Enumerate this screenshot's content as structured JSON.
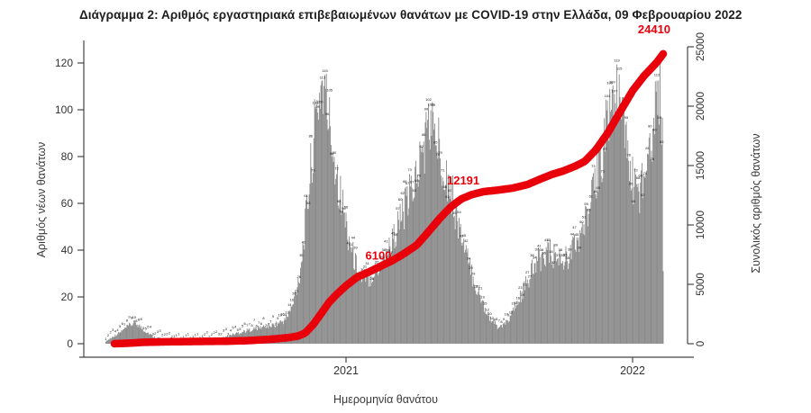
{
  "chart_data": {
    "type": "bar+line",
    "title": "Διάγραμμα 2: Αριθμός εργαστηριακά επιβεβαιωμένων θανάτων με COVID-19 στην Ελλάδα, 09 Φεβρουαρίου 2022",
    "xlabel": "Ημερομηνία θανάτου",
    "ylabel_left": "Αριθμός νέων θανάτων",
    "ylabel_right": "Συνολικός αριθμός θανάτων",
    "x_ticks": [
      "2021",
      "2022"
    ],
    "y_ticks_left": [
      0,
      20,
      40,
      60,
      80,
      100,
      120
    ],
    "y_ticks_right": [
      0,
      5000,
      10000,
      15000,
      20000,
      25000
    ],
    "ylim_left": [
      0,
      128
    ],
    "ylim_right": [
      0,
      25000
    ],
    "grid": false,
    "legend": "none",
    "colors": {
      "bar": "#8a8a8a",
      "line": "#e8000b",
      "bar_label": "#111111",
      "axis": "#454545",
      "tick_text": "#333333"
    },
    "annotations": [
      {
        "label": "6100",
        "date": "2021-02-01",
        "value": 6100
      },
      {
        "label": "12191",
        "date": "2021-05-28",
        "value": 12191
      },
      {
        "label": "24410",
        "date": "2022-02-09",
        "value": 24410
      }
    ],
    "daily_deaths": [
      [
        "2020-03-01",
        1
      ],
      [
        "2020-03-10",
        3
      ],
      [
        "2020-03-20",
        5
      ],
      [
        "2020-04-01",
        8
      ],
      [
        "2020-04-08",
        9
      ],
      [
        "2020-04-18",
        6
      ],
      [
        "2020-05-01",
        3
      ],
      [
        "2020-05-15",
        2
      ],
      [
        "2020-06-01",
        1
      ],
      [
        "2020-06-15",
        1
      ],
      [
        "2020-07-01",
        1.5
      ],
      [
        "2020-07-15",
        2
      ],
      [
        "2020-08-01",
        3
      ],
      [
        "2020-08-15",
        4.5
      ],
      [
        "2020-09-01",
        6
      ],
      [
        "2020-09-15",
        7
      ],
      [
        "2020-10-01",
        8
      ],
      [
        "2020-10-15",
        10
      ],
      [
        "2020-10-25",
        16
      ],
      [
        "2020-11-03",
        30
      ],
      [
        "2020-11-10",
        50
      ],
      [
        "2020-11-18",
        78
      ],
      [
        "2020-11-25",
        100
      ],
      [
        "2020-12-01",
        112
      ],
      [
        "2020-12-06",
        105
      ],
      [
        "2020-12-12",
        92
      ],
      [
        "2020-12-18",
        78
      ],
      [
        "2020-12-26",
        62
      ],
      [
        "2021-01-03",
        48
      ],
      [
        "2021-01-10",
        38
      ],
      [
        "2021-01-17",
        30
      ],
      [
        "2021-01-24",
        27
      ],
      [
        "2021-02-01",
        29
      ],
      [
        "2021-02-10",
        32
      ],
      [
        "2021-02-20",
        37
      ],
      [
        "2021-03-01",
        44
      ],
      [
        "2021-03-10",
        52
      ],
      [
        "2021-03-20",
        60
      ],
      [
        "2021-04-01",
        72
      ],
      [
        "2021-04-10",
        84
      ],
      [
        "2021-04-17",
        95
      ],
      [
        "2021-04-24",
        90
      ],
      [
        "2021-05-01",
        82
      ],
      [
        "2021-05-08",
        74
      ],
      [
        "2021-05-16",
        64
      ],
      [
        "2021-05-24",
        52
      ],
      [
        "2021-06-01",
        40
      ],
      [
        "2021-06-10",
        30
      ],
      [
        "2021-06-18",
        22
      ],
      [
        "2021-06-26",
        16
      ],
      [
        "2021-07-05",
        10
      ],
      [
        "2021-07-14",
        7
      ],
      [
        "2021-07-22",
        8
      ],
      [
        "2021-08-01",
        13
      ],
      [
        "2021-08-10",
        19
      ],
      [
        "2021-08-18",
        25
      ],
      [
        "2021-08-26",
        31
      ],
      [
        "2021-09-04",
        36
      ],
      [
        "2021-09-12",
        39
      ],
      [
        "2021-09-20",
        38
      ],
      [
        "2021-09-28",
        36
      ],
      [
        "2021-10-06",
        36
      ],
      [
        "2021-10-14",
        39
      ],
      [
        "2021-10-22",
        43
      ],
      [
        "2021-10-30",
        49
      ],
      [
        "2021-11-07",
        57
      ],
      [
        "2021-11-14",
        66
      ],
      [
        "2021-11-21",
        78
      ],
      [
        "2021-11-28",
        92
      ],
      [
        "2021-12-04",
        102
      ],
      [
        "2021-12-09",
        107
      ],
      [
        "2021-12-15",
        101
      ],
      [
        "2021-12-21",
        91
      ],
      [
        "2021-12-27",
        80
      ],
      [
        "2022-01-02",
        68
      ],
      [
        "2022-01-08",
        64
      ],
      [
        "2022-01-14",
        70
      ],
      [
        "2022-01-20",
        80
      ],
      [
        "2022-01-26",
        92
      ],
      [
        "2022-02-01",
        103
      ],
      [
        "2022-02-05",
        110
      ],
      [
        "2022-02-08",
        95
      ],
      [
        "2022-02-09",
        35
      ]
    ],
    "cumulative_deaths": [
      [
        "2020-03-12",
        0
      ],
      [
        "2020-04-01",
        50
      ],
      [
        "2020-04-15",
        110
      ],
      [
        "2020-05-01",
        140
      ],
      [
        "2020-06-01",
        175
      ],
      [
        "2020-07-01",
        192
      ],
      [
        "2020-08-01",
        210
      ],
      [
        "2020-09-01",
        271
      ],
      [
        "2020-10-01",
        395
      ],
      [
        "2020-10-20",
        520
      ],
      [
        "2020-11-01",
        650
      ],
      [
        "2020-11-10",
        900
      ],
      [
        "2020-11-20",
        1600
      ],
      [
        "2020-12-01",
        2600
      ],
      [
        "2020-12-10",
        3450
      ],
      [
        "2020-12-20",
        4150
      ],
      [
        "2021-01-01",
        4880
      ],
      [
        "2021-01-15",
        5600
      ],
      [
        "2021-02-01",
        6100
      ],
      [
        "2021-02-15",
        6550
      ],
      [
        "2021-03-01",
        7000
      ],
      [
        "2021-03-15",
        7550
      ],
      [
        "2021-04-01",
        8300
      ],
      [
        "2021-04-15",
        9350
      ],
      [
        "2021-05-01",
        10600
      ],
      [
        "2021-05-15",
        11550
      ],
      [
        "2021-05-28",
        12191
      ],
      [
        "2021-06-10",
        12550
      ],
      [
        "2021-06-25",
        12800
      ],
      [
        "2021-07-15",
        12950
      ],
      [
        "2021-08-01",
        13100
      ],
      [
        "2021-08-20",
        13400
      ],
      [
        "2021-09-05",
        13850
      ],
      [
        "2021-09-20",
        14250
      ],
      [
        "2021-10-05",
        14550
      ],
      [
        "2021-10-20",
        14950
      ],
      [
        "2021-11-01",
        15350
      ],
      [
        "2021-11-15",
        16300
      ],
      [
        "2021-12-01",
        17800
      ],
      [
        "2021-12-15",
        19400
      ],
      [
        "2022-01-01",
        21300
      ],
      [
        "2022-01-15",
        22500
      ],
      [
        "2022-02-01",
        23700
      ],
      [
        "2022-02-09",
        24410
      ]
    ]
  }
}
